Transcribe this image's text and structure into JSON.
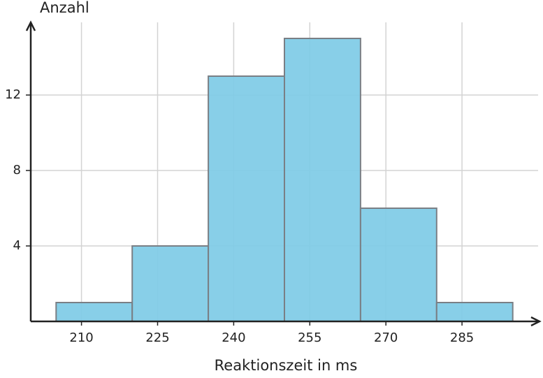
{
  "chart_data": {
    "type": "histogram",
    "x_label": "Reaktionszeit in ms",
    "y_label": "Anzahl",
    "bins": [
      205,
      220,
      235,
      250,
      265,
      280,
      295
    ],
    "counts": [
      1,
      4,
      13,
      15,
      6,
      1
    ],
    "color": "#7ecbe6",
    "edge_color": "#7a7f85",
    "xlim": [
      200,
      300
    ],
    "ylim": [
      0,
      16
    ],
    "xticks": [
      210,
      225,
      240,
      255,
      270,
      285
    ],
    "yticks": [
      4,
      8,
      12
    ],
    "grid": true
  }
}
